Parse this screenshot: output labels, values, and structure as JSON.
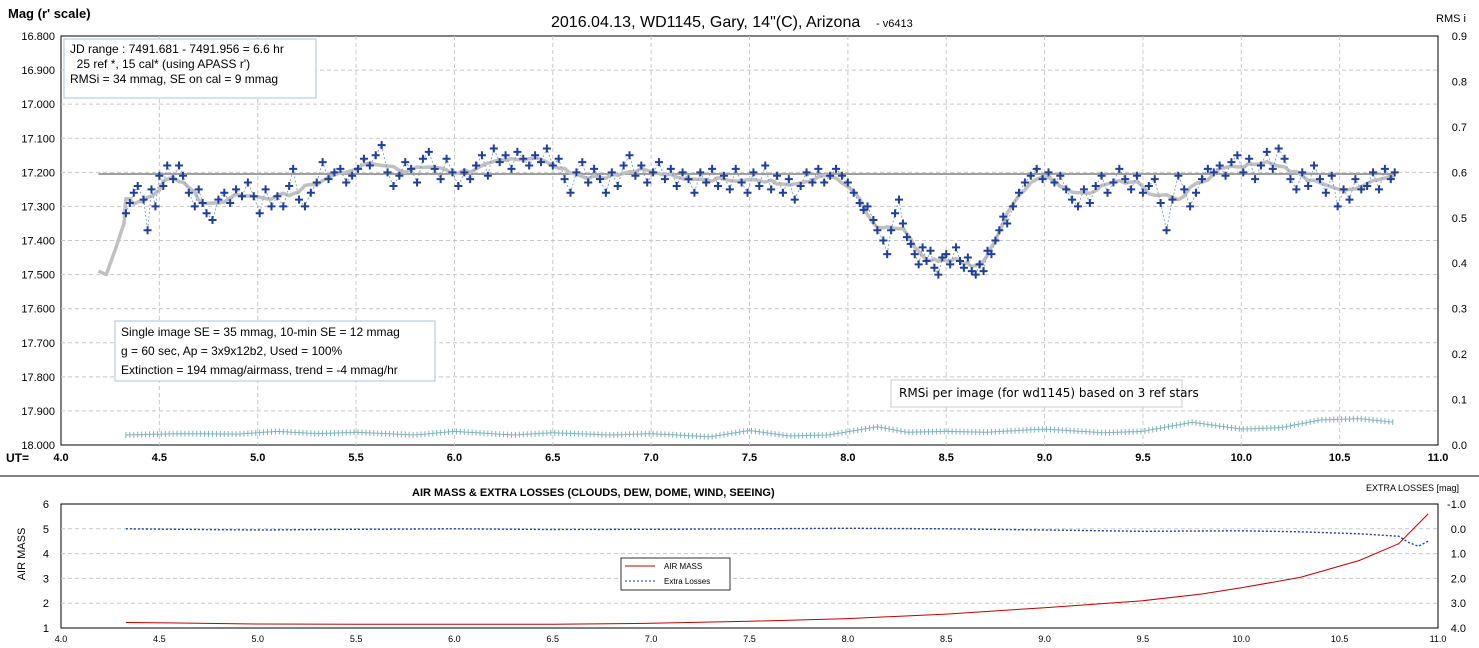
{
  "chart_data": [
    {
      "type": "scatter",
      "title": "2016.04.13,  WD1145, Gary, 14\"(C), Arizona",
      "title_suffix": "- v6413",
      "ylabel": "Mag (r' scale)",
      "y2label": "RMS i",
      "xlabel": "UT=",
      "xlim": [
        4.0,
        11.0
      ],
      "ylim": [
        17.8,
        18.0
      ],
      "ylim_display": [
        16.8,
        18.0
      ],
      "y2lim": [
        0.0,
        0.9
      ],
      "x_ticks": [
        "4.0",
        "4.5",
        "5.0",
        "5.5",
        "6.0",
        "6.5",
        "7.0",
        "7.5",
        "8.0",
        "8.5",
        "9.0",
        "9.5",
        "10.0",
        "10.5",
        "11.0"
      ],
      "y_ticks": [
        "16.800",
        "16.900",
        "17.000",
        "17.100",
        "17.200",
        "17.300",
        "17.400",
        "17.500",
        "17.600",
        "17.700",
        "17.800",
        "17.900",
        "18.000"
      ],
      "y2_ticks": [
        "0.9",
        "0.8",
        "0.7",
        "0.6",
        "0.5",
        "0.4",
        "0.3",
        "0.2",
        "0.1",
        "0.0"
      ],
      "grid": true,
      "info_box": [
        "JD range  : 7491.681 - 7491.956  = 6.6 hr",
        "  25 ref *, 15 cal* (using APASS r')",
        "RMSi = 34 mmag, SE on cal = 9 mmag"
      ],
      "stats_box": [
        "Single image SE = 35 mmag, 10-min SE = 12 mmag",
        "g = 60 sec, Ap = 3x9x12b2, Used = 100%",
        "Extinction = 194 mmag/airmass, trend = -4 mmag/hr"
      ],
      "rms_label": "RMSi per image (for wd1145) based on 3 ref stars",
      "reference_level": 17.205,
      "colors": {
        "points": "#1f3f99",
        "smooth": "#c0c0c0",
        "reference": "#a0a0a0",
        "rms": "#7fb3b8"
      },
      "mag_points": [
        [
          4.33,
          17.32
        ],
        [
          4.35,
          17.29
        ],
        [
          4.37,
          17.26
        ],
        [
          4.39,
          17.24
        ],
        [
          4.42,
          17.28
        ],
        [
          4.44,
          17.37
        ],
        [
          4.46,
          17.25
        ],
        [
          4.48,
          17.3
        ],
        [
          4.5,
          17.21
        ],
        [
          4.52,
          17.24
        ],
        [
          4.54,
          17.18
        ],
        [
          4.57,
          17.22
        ],
        [
          4.6,
          17.18
        ],
        [
          4.62,
          17.21
        ],
        [
          4.65,
          17.26
        ],
        [
          4.68,
          17.3
        ],
        [
          4.7,
          17.25
        ],
        [
          4.72,
          17.29
        ],
        [
          4.74,
          17.32
        ],
        [
          4.77,
          17.34
        ],
        [
          4.8,
          17.28
        ],
        [
          4.83,
          17.26
        ],
        [
          4.86,
          17.29
        ],
        [
          4.89,
          17.25
        ],
        [
          4.92,
          17.27
        ],
        [
          4.95,
          17.23
        ],
        [
          4.98,
          17.27
        ],
        [
          5.01,
          17.32
        ],
        [
          5.04,
          17.25
        ],
        [
          5.07,
          17.3
        ],
        [
          5.1,
          17.27
        ],
        [
          5.13,
          17.3
        ],
        [
          5.16,
          17.24
        ],
        [
          5.18,
          17.19
        ],
        [
          5.21,
          17.28
        ],
        [
          5.24,
          17.3
        ],
        [
          5.27,
          17.26
        ],
        [
          5.3,
          17.23
        ],
        [
          5.33,
          17.17
        ],
        [
          5.36,
          17.22
        ],
        [
          5.39,
          17.2
        ],
        [
          5.42,
          17.19
        ],
        [
          5.45,
          17.23
        ],
        [
          5.48,
          17.21
        ],
        [
          5.51,
          17.19
        ],
        [
          5.54,
          17.16
        ],
        [
          5.57,
          17.18
        ],
        [
          5.6,
          17.15
        ],
        [
          5.63,
          17.12
        ],
        [
          5.66,
          17.2
        ],
        [
          5.69,
          17.24
        ],
        [
          5.72,
          17.21
        ],
        [
          5.75,
          17.17
        ],
        [
          5.78,
          17.19
        ],
        [
          5.81,
          17.23
        ],
        [
          5.84,
          17.16
        ],
        [
          5.87,
          17.14
        ],
        [
          5.9,
          17.19
        ],
        [
          5.93,
          17.22
        ],
        [
          5.96,
          17.16
        ],
        [
          5.99,
          17.2
        ],
        [
          6.02,
          17.24
        ],
        [
          6.05,
          17.2
        ],
        [
          6.08,
          17.22
        ],
        [
          6.11,
          17.18
        ],
        [
          6.14,
          17.15
        ],
        [
          6.17,
          17.21
        ],
        [
          6.2,
          17.13
        ],
        [
          6.23,
          17.17
        ],
        [
          6.26,
          17.15
        ],
        [
          6.29,
          17.19
        ],
        [
          6.32,
          17.14
        ],
        [
          6.35,
          17.16
        ],
        [
          6.38,
          17.18
        ],
        [
          6.41,
          17.15
        ],
        [
          6.44,
          17.17
        ],
        [
          6.47,
          17.13
        ],
        [
          6.5,
          17.18
        ],
        [
          6.53,
          17.16
        ],
        [
          6.56,
          17.22
        ],
        [
          6.59,
          17.26
        ],
        [
          6.62,
          17.2
        ],
        [
          6.65,
          17.17
        ],
        [
          6.68,
          17.23
        ],
        [
          6.71,
          17.19
        ],
        [
          6.74,
          17.22
        ],
        [
          6.77,
          17.26
        ],
        [
          6.8,
          17.2
        ],
        [
          6.83,
          17.24
        ],
        [
          6.86,
          17.18
        ],
        [
          6.89,
          17.15
        ],
        [
          6.92,
          17.21
        ],
        [
          6.95,
          17.18
        ],
        [
          6.98,
          17.23
        ],
        [
          7.01,
          17.2
        ],
        [
          7.04,
          17.17
        ],
        [
          7.07,
          17.22
        ],
        [
          7.1,
          17.19
        ],
        [
          7.13,
          17.24
        ],
        [
          7.16,
          17.2
        ],
        [
          7.19,
          17.22
        ],
        [
          7.22,
          17.26
        ],
        [
          7.25,
          17.2
        ],
        [
          7.28,
          17.23
        ],
        [
          7.31,
          17.19
        ],
        [
          7.34,
          17.24
        ],
        [
          7.37,
          17.21
        ],
        [
          7.4,
          17.25
        ],
        [
          7.43,
          17.19
        ],
        [
          7.46,
          17.23
        ],
        [
          7.49,
          17.26
        ],
        [
          7.52,
          17.2
        ],
        [
          7.55,
          17.24
        ],
        [
          7.58,
          17.18
        ],
        [
          7.61,
          17.25
        ],
        [
          7.64,
          17.21
        ],
        [
          7.67,
          17.26
        ],
        [
          7.7,
          17.22
        ],
        [
          7.73,
          17.28
        ],
        [
          7.76,
          17.24
        ],
        [
          7.79,
          17.2
        ],
        [
          7.82,
          17.23
        ],
        [
          7.85,
          17.19
        ],
        [
          7.88,
          17.23
        ],
        [
          7.91,
          17.21
        ],
        [
          7.94,
          17.19
        ],
        [
          7.97,
          17.21
        ],
        [
          8.0,
          17.23
        ],
        [
          8.03,
          17.26
        ],
        [
          8.06,
          17.29
        ],
        [
          8.08,
          17.31
        ],
        [
          8.1,
          17.3
        ],
        [
          8.13,
          17.34
        ],
        [
          8.15,
          17.37
        ],
        [
          8.18,
          17.4
        ],
        [
          8.2,
          17.44
        ],
        [
          8.22,
          17.37
        ],
        [
          8.24,
          17.32
        ],
        [
          8.26,
          17.28
        ],
        [
          8.28,
          17.35
        ],
        [
          8.3,
          17.39
        ],
        [
          8.32,
          17.41
        ],
        [
          8.34,
          17.44
        ],
        [
          8.36,
          17.47
        ],
        [
          8.38,
          17.42
        ],
        [
          8.4,
          17.46
        ],
        [
          8.42,
          17.43
        ],
        [
          8.44,
          17.48
        ],
        [
          8.46,
          17.5
        ],
        [
          8.48,
          17.45
        ],
        [
          8.5,
          17.44
        ],
        [
          8.52,
          17.47
        ],
        [
          8.55,
          17.42
        ],
        [
          8.57,
          17.46
        ],
        [
          8.59,
          17.48
        ],
        [
          8.61,
          17.45
        ],
        [
          8.63,
          17.49
        ],
        [
          8.65,
          17.5
        ],
        [
          8.67,
          17.47
        ],
        [
          8.69,
          17.49
        ],
        [
          8.71,
          17.43
        ],
        [
          8.73,
          17.44
        ],
        [
          8.75,
          17.4
        ],
        [
          8.77,
          17.37
        ],
        [
          8.79,
          17.33
        ],
        [
          8.81,
          17.35
        ],
        [
          8.84,
          17.3
        ],
        [
          8.87,
          17.26
        ],
        [
          8.9,
          17.23
        ],
        [
          8.93,
          17.21
        ],
        [
          8.96,
          17.19
        ],
        [
          8.99,
          17.22
        ],
        [
          9.02,
          17.2
        ],
        [
          9.05,
          17.23
        ],
        [
          9.08,
          17.21
        ],
        [
          9.11,
          17.25
        ],
        [
          9.14,
          17.28
        ],
        [
          9.17,
          17.3
        ],
        [
          9.2,
          17.25
        ],
        [
          9.23,
          17.29
        ],
        [
          9.26,
          17.24
        ],
        [
          9.29,
          17.21
        ],
        [
          9.32,
          17.26
        ],
        [
          9.35,
          17.23
        ],
        [
          9.38,
          17.19
        ],
        [
          9.41,
          17.22
        ],
        [
          9.44,
          17.25
        ],
        [
          9.47,
          17.21
        ],
        [
          9.5,
          17.26
        ],
        [
          9.53,
          17.24
        ],
        [
          9.56,
          17.22
        ],
        [
          9.59,
          17.29
        ],
        [
          9.62,
          17.37
        ],
        [
          9.65,
          17.28
        ],
        [
          9.68,
          17.21
        ],
        [
          9.71,
          17.25
        ],
        [
          9.74,
          17.3
        ],
        [
          9.77,
          17.26
        ],
        [
          9.8,
          17.22
        ],
        [
          9.83,
          17.19
        ],
        [
          9.86,
          17.2
        ],
        [
          9.89,
          17.18
        ],
        [
          9.92,
          17.21
        ],
        [
          9.95,
          17.17
        ],
        [
          9.98,
          17.15
        ],
        [
          10.01,
          17.2
        ],
        [
          10.04,
          17.16
        ],
        [
          10.07,
          17.22
        ],
        [
          10.1,
          17.18
        ],
        [
          10.13,
          17.14
        ],
        [
          10.16,
          17.19
        ],
        [
          10.19,
          17.13
        ],
        [
          10.22,
          17.16
        ],
        [
          10.25,
          17.22
        ],
        [
          10.28,
          17.25
        ],
        [
          10.31,
          17.2
        ],
        [
          10.34,
          17.24
        ],
        [
          10.37,
          17.18
        ],
        [
          10.4,
          17.22
        ],
        [
          10.43,
          17.26
        ],
        [
          10.46,
          17.21
        ],
        [
          10.49,
          17.3
        ],
        [
          10.52,
          17.25
        ],
        [
          10.55,
          17.28
        ],
        [
          10.58,
          17.22
        ],
        [
          10.61,
          17.25
        ],
        [
          10.64,
          17.24
        ],
        [
          10.67,
          17.2
        ],
        [
          10.7,
          17.25
        ],
        [
          10.73,
          17.19
        ],
        [
          10.76,
          17.22
        ],
        [
          10.78,
          17.2
        ]
      ],
      "rms_points": [
        [
          4.33,
          0.022
        ],
        [
          4.6,
          0.025
        ],
        [
          4.9,
          0.024
        ],
        [
          5.1,
          0.03
        ],
        [
          5.3,
          0.025
        ],
        [
          5.5,
          0.028
        ],
        [
          5.8,
          0.022
        ],
        [
          6.0,
          0.03
        ],
        [
          6.3,
          0.022
        ],
        [
          6.5,
          0.027
        ],
        [
          6.8,
          0.022
        ],
        [
          7.0,
          0.025
        ],
        [
          7.3,
          0.018
        ],
        [
          7.5,
          0.032
        ],
        [
          7.7,
          0.02
        ],
        [
          7.9,
          0.022
        ],
        [
          8.15,
          0.04
        ],
        [
          8.3,
          0.028
        ],
        [
          8.5,
          0.03
        ],
        [
          8.7,
          0.028
        ],
        [
          9.0,
          0.035
        ],
        [
          9.3,
          0.027
        ],
        [
          9.5,
          0.03
        ],
        [
          9.75,
          0.05
        ],
        [
          10.0,
          0.035
        ],
        [
          10.2,
          0.038
        ],
        [
          10.4,
          0.055
        ],
        [
          10.6,
          0.058
        ],
        [
          10.78,
          0.05
        ]
      ]
    },
    {
      "type": "line",
      "title": "AIR MASS & EXTRA LOSSES (CLOUDS, DEW, DOME, WIND, SEEING)",
      "ylabel": "AIR MASS",
      "y2label": "EXTRA LOSSES [mag]",
      "xlim": [
        4.0,
        11.0
      ],
      "ylim": [
        1,
        6
      ],
      "y2lim": [
        -1.0,
        4.0
      ],
      "x_ticks": [
        "4.0",
        "4.5",
        "5.0",
        "5.5",
        "6.0",
        "6.5",
        "7.0",
        "7.5",
        "8.0",
        "8.5",
        "9.0",
        "9.5",
        "10.0",
        "10.5",
        "11.0"
      ],
      "y_ticks": [
        "6",
        "5",
        "4",
        "3",
        "2",
        "1"
      ],
      "y2_ticks": [
        "-1.0",
        "0.0",
        "1.0",
        "2.0",
        "3.0",
        "4.0"
      ],
      "legend": {
        "placement": "center-left",
        "items": [
          "AIR MASS",
          "Extra Losses"
        ]
      },
      "grid": true,
      "series": [
        {
          "name": "AIR MASS",
          "color": "#c00000",
          "x": [
            4.33,
            4.6,
            5.0,
            5.5,
            6.0,
            6.5,
            7.0,
            7.5,
            8.0,
            8.5,
            9.0,
            9.5,
            9.8,
            10.0,
            10.3,
            10.6,
            10.8,
            10.95
          ],
          "values": [
            1.22,
            1.2,
            1.16,
            1.15,
            1.15,
            1.15,
            1.19,
            1.27,
            1.38,
            1.56,
            1.82,
            2.1,
            2.37,
            2.62,
            3.04,
            3.72,
            4.4,
            5.6
          ]
        },
        {
          "name": "Extra Losses",
          "color": "#1f3f99",
          "x": [
            4.33,
            4.6,
            5.0,
            5.5,
            6.0,
            6.5,
            7.0,
            7.5,
            8.0,
            8.5,
            9.0,
            9.5,
            10.0,
            10.3,
            10.6,
            10.8,
            10.85,
            10.9,
            10.95
          ],
          "values": [
            0.0,
            0.02,
            0.05,
            0.02,
            0.0,
            0.03,
            0.02,
            0.0,
            -0.02,
            0.0,
            0.05,
            0.1,
            0.08,
            0.12,
            0.2,
            0.3,
            0.55,
            0.7,
            0.5
          ]
        }
      ]
    }
  ]
}
